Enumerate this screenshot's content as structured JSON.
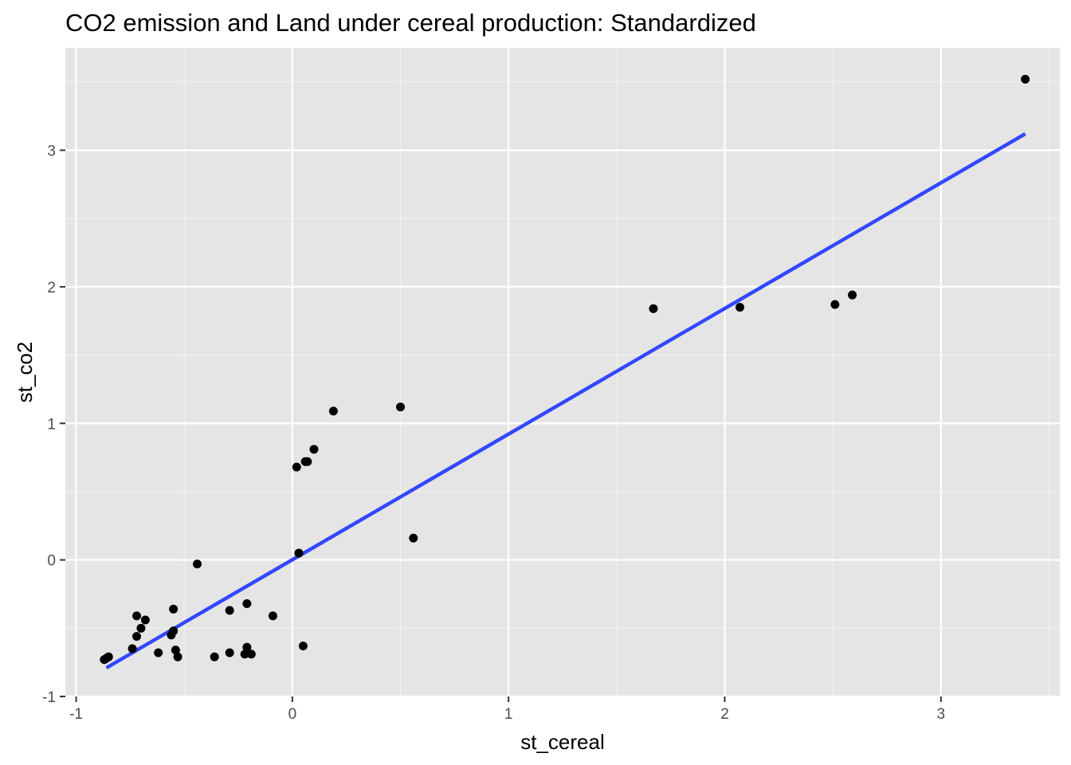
{
  "chart_data": {
    "type": "scatter",
    "title": "CO2 emission and Land under cereal production: Standardized",
    "xlabel": "st_cereal",
    "ylabel": "st_co2",
    "xlim": [
      -1.05,
      3.55
    ],
    "ylim": [
      -1.0,
      3.75
    ],
    "x_ticks": [
      -1,
      0,
      1,
      2,
      3
    ],
    "y_ticks": [
      -1,
      0,
      1,
      2,
      3
    ],
    "x_tick_labels": [
      "-1",
      "0",
      "1",
      "2",
      "3"
    ],
    "y_tick_labels": [
      "-1",
      "0",
      "1",
      "2",
      "3"
    ],
    "grid": true,
    "legend": "none",
    "colors": {
      "panel": "#e5e5e5",
      "grid_major": "#ffffff",
      "grid_minor": "#f2f2f2",
      "points": "#000000",
      "fit_line": "#3247ff",
      "tick": "#333333"
    },
    "series": [
      {
        "type": "scatter",
        "points": [
          {
            "x": -0.87,
            "y": -0.73
          },
          {
            "x": -0.86,
            "y": -0.72
          },
          {
            "x": -0.85,
            "y": -0.71
          },
          {
            "x": -0.74,
            "y": -0.65
          },
          {
            "x": -0.72,
            "y": -0.41
          },
          {
            "x": -0.72,
            "y": -0.56
          },
          {
            "x": -0.7,
            "y": -0.5
          },
          {
            "x": -0.68,
            "y": -0.44
          },
          {
            "x": -0.62,
            "y": -0.68
          },
          {
            "x": -0.56,
            "y": -0.55
          },
          {
            "x": -0.55,
            "y": -0.52
          },
          {
            "x": -0.55,
            "y": -0.36
          },
          {
            "x": -0.54,
            "y": -0.66
          },
          {
            "x": -0.53,
            "y": -0.71
          },
          {
            "x": -0.44,
            "y": -0.03
          },
          {
            "x": -0.36,
            "y": -0.71
          },
          {
            "x": -0.29,
            "y": -0.37
          },
          {
            "x": -0.29,
            "y": -0.68
          },
          {
            "x": -0.22,
            "y": -0.69
          },
          {
            "x": -0.21,
            "y": -0.32
          },
          {
            "x": -0.21,
            "y": -0.64
          },
          {
            "x": -0.19,
            "y": -0.69
          },
          {
            "x": -0.09,
            "y": -0.41
          },
          {
            "x": 0.02,
            "y": 0.68
          },
          {
            "x": 0.03,
            "y": 0.05
          },
          {
            "x": 0.05,
            "y": -0.63
          },
          {
            "x": 0.06,
            "y": 0.72
          },
          {
            "x": 0.07,
            "y": 0.72
          },
          {
            "x": 0.1,
            "y": 0.81
          },
          {
            "x": 0.19,
            "y": 1.09
          },
          {
            "x": 0.5,
            "y": 1.12
          },
          {
            "x": 0.56,
            "y": 0.16
          },
          {
            "x": 1.67,
            "y": 1.84
          },
          {
            "x": 2.07,
            "y": 1.85
          },
          {
            "x": 2.51,
            "y": 1.87
          },
          {
            "x": 2.59,
            "y": 1.94
          },
          {
            "x": 3.39,
            "y": 3.52
          }
        ]
      },
      {
        "type": "line",
        "method": "linear fit",
        "x": [
          -0.86,
          3.39
        ],
        "y": [
          -0.79,
          3.12
        ]
      }
    ]
  }
}
